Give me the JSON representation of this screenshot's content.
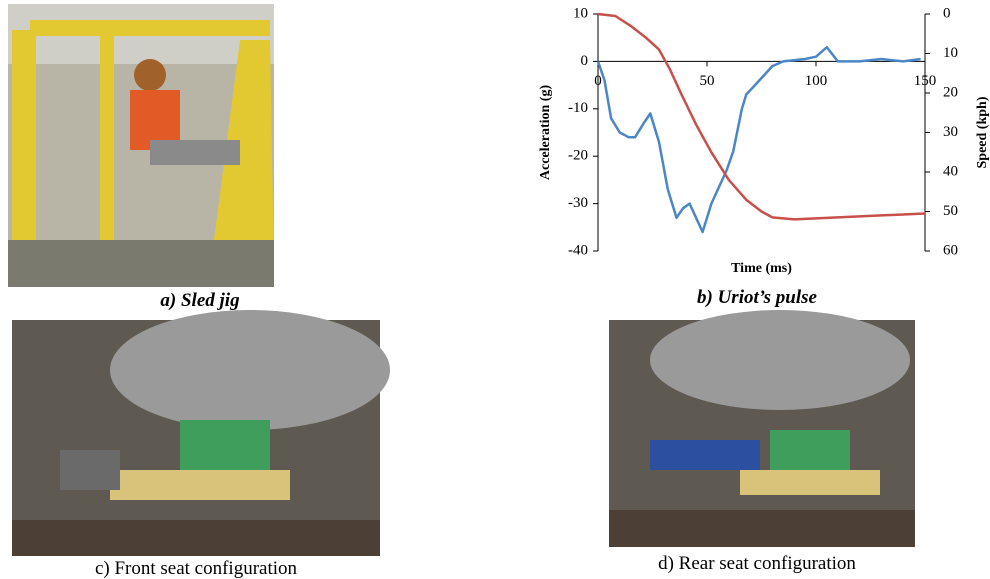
{
  "figure": {
    "panels": [
      {
        "caption": "a) Sled jig"
      },
      {
        "caption": "b) Uriot’s pulse"
      },
      {
        "caption": "c) Front seat configuration"
      },
      {
        "caption": "d) Rear seat configuration"
      }
    ]
  },
  "chart_data": {
    "type": "line",
    "x_label": "Time (ms)",
    "y_label": "Acceleration (g)",
    "y2_label": "Speed (kph)",
    "xlim": [
      0,
      150
    ],
    "xticks": [
      0,
      50,
      100,
      150
    ],
    "ylim": [
      -40,
      10
    ],
    "yticks": [
      -40,
      -30,
      -20,
      -10,
      0,
      10
    ],
    "y2lim": [
      60,
      0
    ],
    "y2ticks": [
      0,
      10,
      20,
      30,
      40,
      50,
      60
    ],
    "series": [
      {
        "color": "#4a86c8",
        "x": [
          0,
          3,
          6,
          10,
          14,
          17,
          21,
          24,
          28,
          32,
          36,
          39,
          42,
          45,
          48,
          52,
          55,
          59,
          62,
          66,
          68,
          72,
          76,
          80,
          85,
          95,
          100,
          105,
          110,
          120,
          130,
          140,
          148
        ],
        "values": [
          0,
          -4,
          -12,
          -15,
          -16,
          -16,
          -13,
          -11,
          -17,
          -27,
          -33,
          -31,
          -30,
          -33,
          -36,
          -30,
          -27,
          -23,
          -19,
          -10,
          -7,
          -5,
          -3,
          -1,
          0,
          0.5,
          1,
          3,
          0,
          0,
          0.5,
          0,
          0.5
        ]
      },
      {
        "color": "#c8504a",
        "axis": "y2",
        "x": [
          0,
          8,
          15,
          22,
          28,
          33,
          38,
          45,
          52,
          60,
          68,
          75,
          80,
          90,
          110,
          130,
          150
        ],
        "values": [
          0,
          0.5,
          3,
          6,
          9,
          14,
          20,
          28,
          35,
          42,
          47,
          50,
          51.5,
          52,
          51.5,
          51,
          50.5
        ]
      }
    ]
  }
}
